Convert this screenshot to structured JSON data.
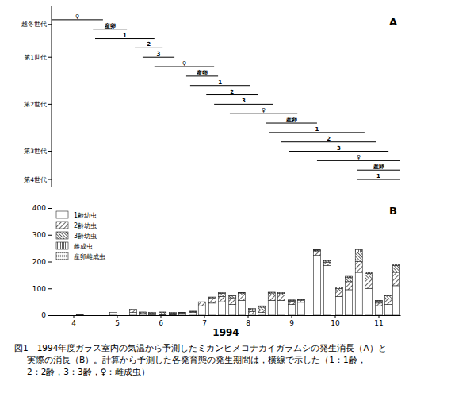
{
  "chart_data": [
    {
      "type": "gantt",
      "title": "A",
      "xlim": [
        4,
        12
      ],
      "tick_labels": "y",
      "series": [
        {
          "name": "越冬世代",
          "segments": [
            {
              "label": "♀",
              "start": 4.0,
              "end": 5.18
            },
            {
              "label": "産卵",
              "start": 4.95,
              "end": 5.73
            }
          ]
        },
        {
          "name": "第1世代",
          "segments": [
            {
              "label": "1",
              "start": 5.0,
              "end": 6.36
            },
            {
              "label": "2",
              "start": 5.91,
              "end": 6.55
            },
            {
              "label": "3",
              "start": 6.09,
              "end": 6.82
            },
            {
              "label": "♀",
              "start": 6.36,
              "end": 7.73
            },
            {
              "label": "産卵",
              "start": 7.09,
              "end": 7.82
            }
          ]
        },
        {
          "name": "第2世代",
          "segments": [
            {
              "label": "1",
              "start": 7.18,
              "end": 8.55
            },
            {
              "label": "2",
              "start": 7.55,
              "end": 8.73
            },
            {
              "label": "3",
              "start": 7.73,
              "end": 9.09
            },
            {
              "label": "♀",
              "start": 8.09,
              "end": 9.64
            },
            {
              "label": "産卵",
              "start": 8.91,
              "end": 10.09
            }
          ]
        },
        {
          "name": "第3世代",
          "segments": [
            {
              "label": "1",
              "start": 9.0,
              "end": 11.18
            },
            {
              "label": "2",
              "start": 9.27,
              "end": 11.45
            },
            {
              "label": "3",
              "start": 9.45,
              "end": 11.73
            },
            {
              "label": "♀",
              "start": 10.09,
              "end": 12.0
            },
            {
              "label": "産卵",
              "start": 11.0,
              "end": 12.0
            }
          ]
        },
        {
          "name": "第4世代",
          "segments": [
            {
              "label": "1",
              "start": 11.0,
              "end": 12.0
            }
          ]
        }
      ]
    },
    {
      "type": "bar",
      "title": "B",
      "stacked": true,
      "grid": false,
      "legend": "upper left",
      "xlabel": "1994",
      "x": [
        4.65,
        5.42,
        5.87,
        6.09,
        6.31,
        6.55,
        6.78,
        7.0,
        7.24,
        7.45,
        7.69,
        7.91,
        8.15,
        8.36,
        8.6,
        8.82,
        9.05,
        9.27,
        9.51,
        9.73,
        10.09,
        10.33,
        10.6,
        10.82,
        11.05,
        11.27,
        11.51,
        11.73,
        11.91
      ],
      "xlim": [
        4,
        12
      ],
      "xticks": [
        {
          "value": 4.5,
          "label": "4"
        },
        {
          "value": 5.5,
          "label": "5"
        },
        {
          "value": 6.5,
          "label": "6"
        },
        {
          "value": 7.5,
          "label": "7"
        },
        {
          "value": 8.5,
          "label": "8"
        },
        {
          "value": 9.5,
          "label": "9"
        },
        {
          "value": 10.5,
          "label": "10"
        },
        {
          "value": 11.5,
          "label": "11"
        }
      ],
      "ylim": [
        0,
        400
      ],
      "yticks": [
        0,
        100,
        200,
        300,
        400
      ],
      "series": [
        {
          "name": "1齢幼虫",
          "color": "#222222",
          "values": [
            2,
            10,
            10,
            4,
            3,
            2,
            2,
            5,
            10,
            35,
            45,
            50,
            40,
            55,
            5,
            10,
            55,
            55,
            40,
            48,
            223,
            185,
            70,
            95,
            160,
            100,
            35,
            40,
            110
          ]
        },
        {
          "name": "2齢幼虫",
          "color": "#222222",
          "values": [
            0,
            0,
            12,
            5,
            4,
            3,
            2,
            2,
            3,
            15,
            20,
            20,
            25,
            20,
            8,
            10,
            20,
            20,
            12,
            8,
            12,
            12,
            20,
            30,
            40,
            35,
            10,
            20,
            50
          ]
        },
        {
          "name": "3齢幼虫",
          "color": "#222222",
          "values": [
            0,
            0,
            0,
            3,
            4,
            5,
            4,
            2,
            1,
            0,
            3,
            12,
            8,
            8,
            8,
            10,
            8,
            6,
            3,
            2,
            5,
            5,
            10,
            15,
            35,
            20,
            8,
            12,
            25
          ]
        },
        {
          "name": "雌成虫",
          "color": "#222222",
          "values": [
            0,
            0,
            0,
            0,
            0,
            2,
            2,
            1,
            1,
            0,
            0,
            2,
            2,
            2,
            4,
            5,
            3,
            4,
            2,
            2,
            3,
            3,
            5,
            5,
            10,
            5,
            2,
            3,
            5
          ]
        },
        {
          "name": "産卵雌成虫",
          "color": "#222222",
          "values": [
            0,
            0,
            0,
            0,
            0,
            0,
            0,
            0,
            0,
            0,
            0,
            0,
            0,
            0,
            0,
            0,
            0,
            0,
            0,
            0,
            2,
            0,
            0,
            0,
            0,
            0,
            0,
            0,
            0
          ]
        }
      ]
    }
  ],
  "caption": [
    "図1　1994年度ガラス室内の気温から予測したミカンヒメコナカイガラムシの発生消長（A）と",
    "実際の消長（B）。計算から予測した各発育態の発生期間は，横線で示した（1：1齢，",
    "2：2齢，3：3齢，♀：雌成虫）"
  ]
}
